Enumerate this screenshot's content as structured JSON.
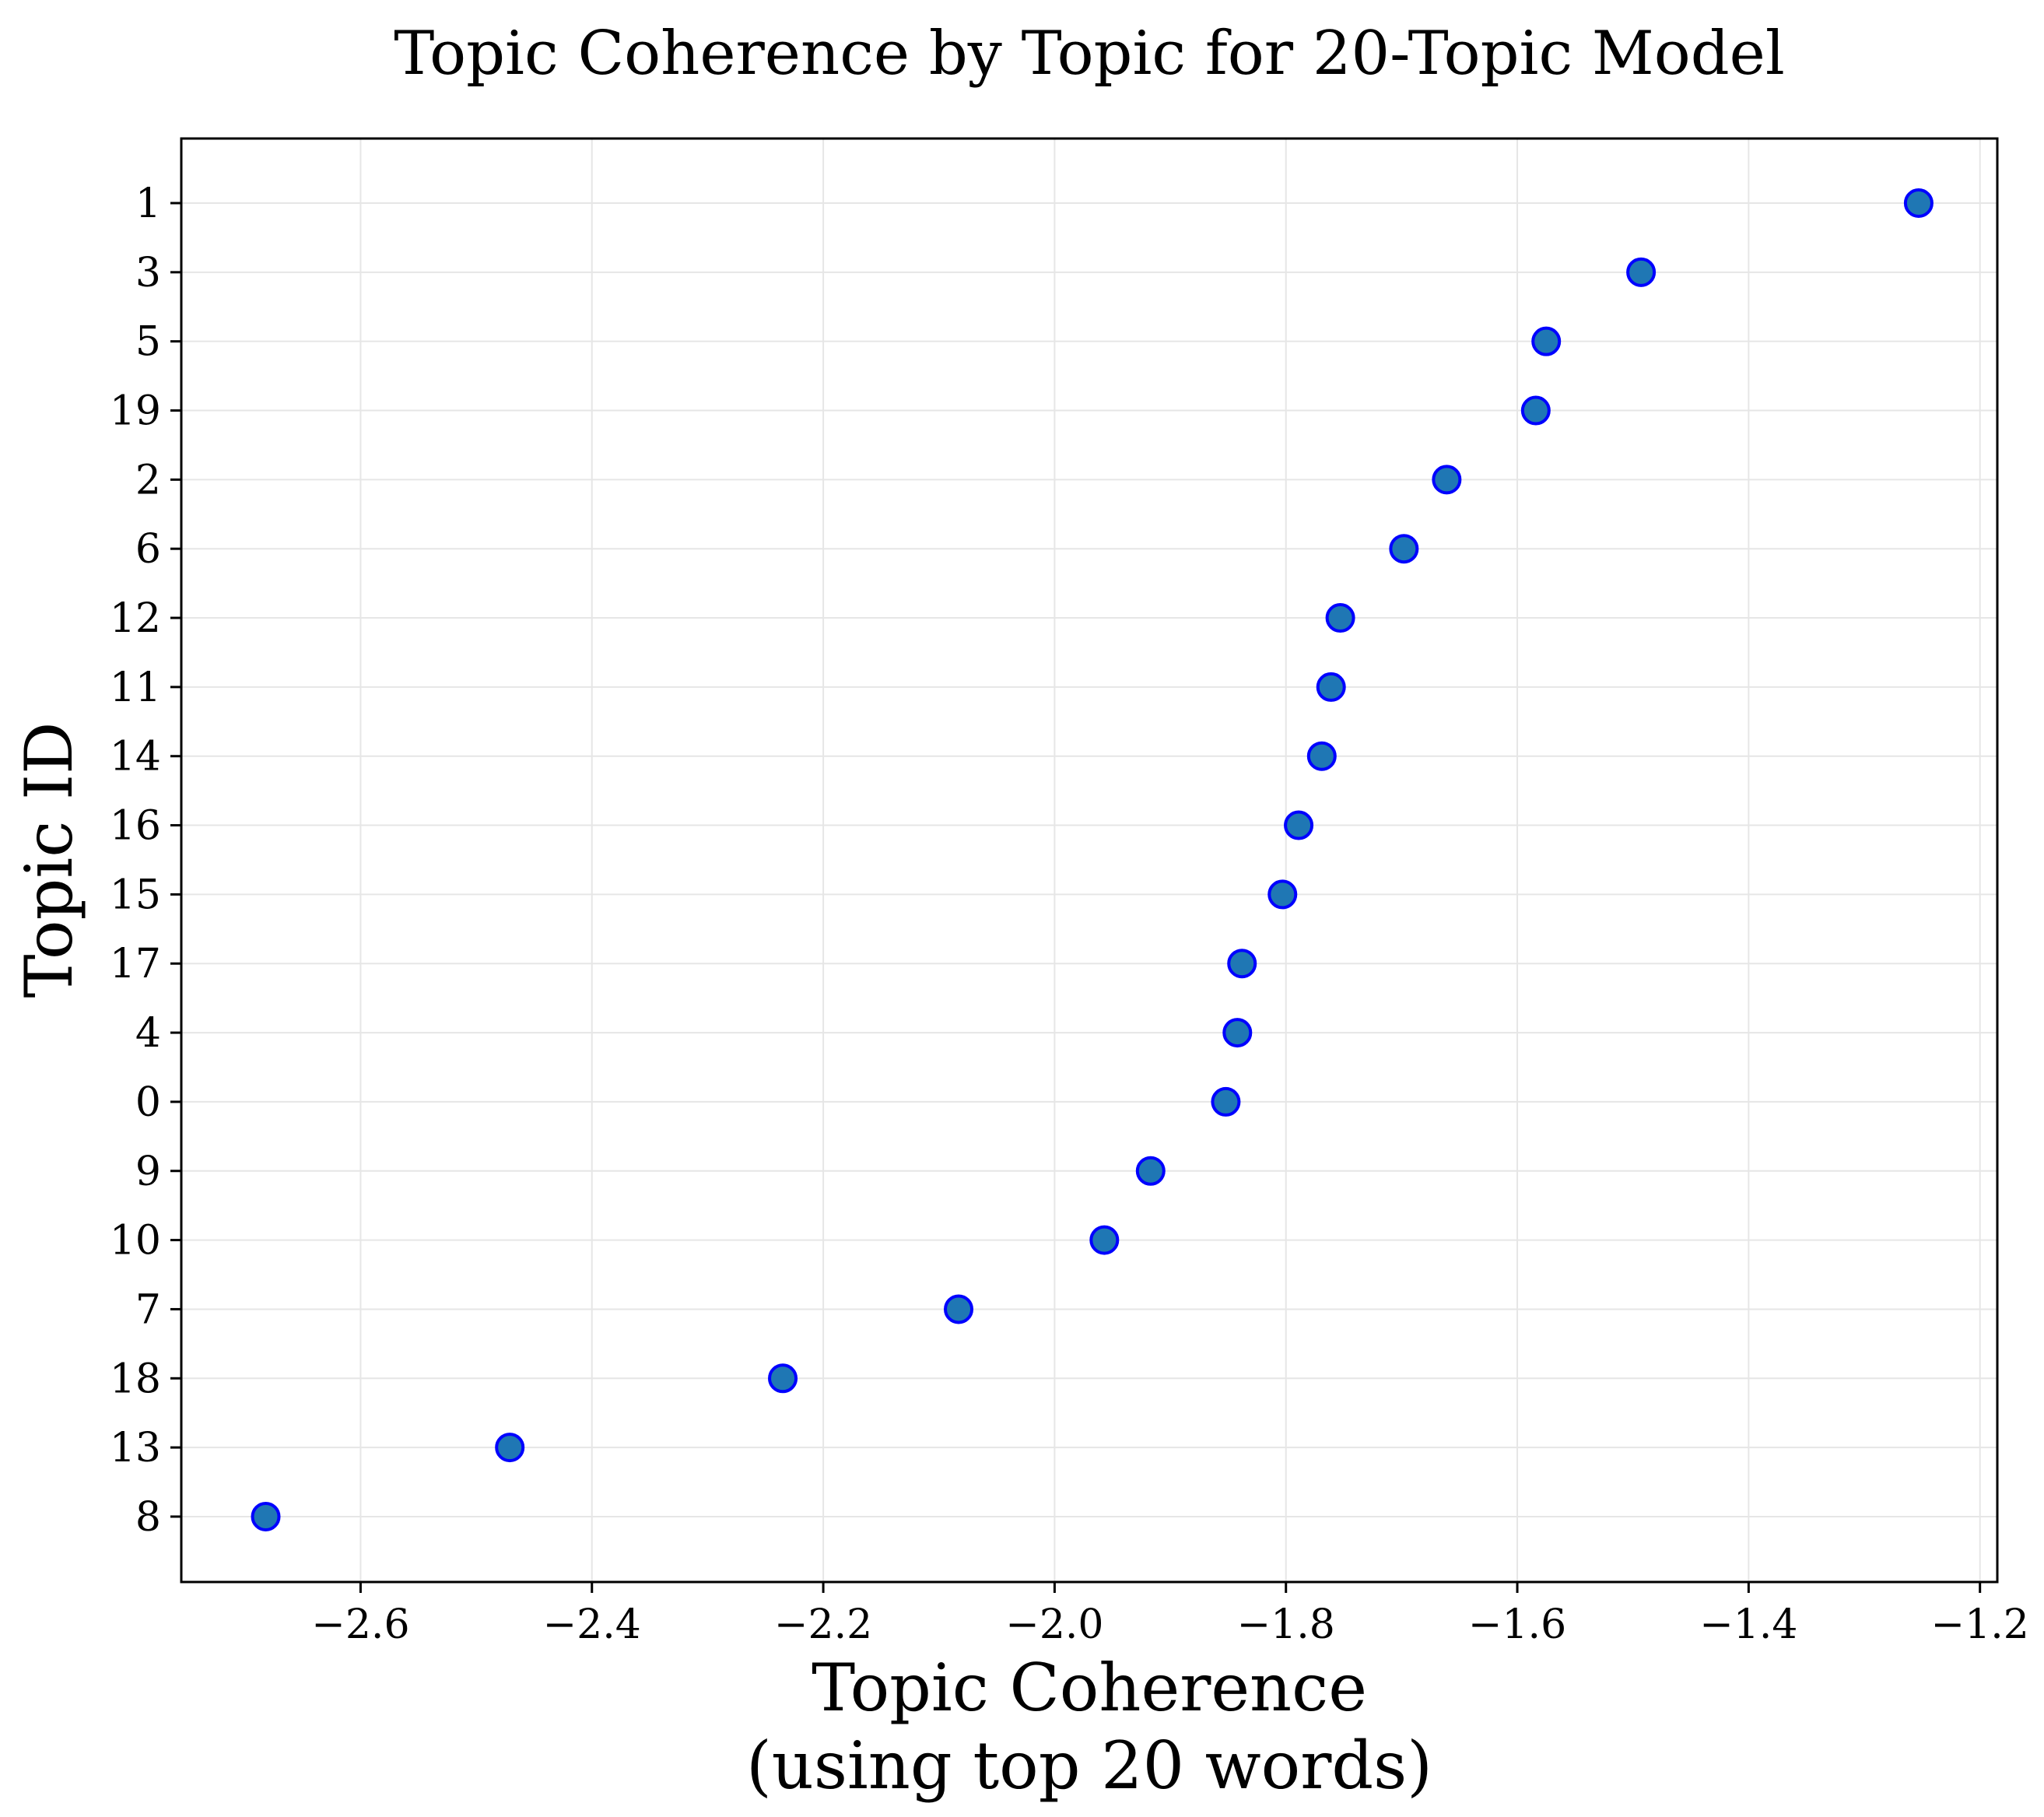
{
  "chart_data": {
    "type": "scatter",
    "title": "Topic Coherence by Topic for 20-Topic Model",
    "xlabel_lines": [
      "Topic Coherence",
      "(using top 20 words)"
    ],
    "ylabel": "Topic ID",
    "xlim": [
      -2.755,
      -1.185
    ],
    "xticks": [
      -2.6,
      -2.4,
      -2.2,
      -2.0,
      -1.8,
      -1.6,
      -1.4,
      -1.2
    ],
    "xtick_labels": [
      "−2.6",
      "−2.4",
      "−2.2",
      "−2.0",
      "−1.8",
      "−1.6",
      "−1.4",
      "−1.2"
    ],
    "grid": true,
    "categories": [
      "1",
      "3",
      "5",
      "19",
      "2",
      "6",
      "12",
      "11",
      "14",
      "16",
      "15",
      "17",
      "4",
      "0",
      "9",
      "10",
      "7",
      "18",
      "13",
      "8"
    ],
    "values": [
      -1.253,
      -1.493,
      -1.575,
      -1.584,
      -1.661,
      -1.698,
      -1.753,
      -1.761,
      -1.769,
      -1.789,
      -1.803,
      -1.838,
      -1.842,
      -1.852,
      -1.917,
      -1.957,
      -2.083,
      -2.235,
      -2.471,
      -2.682
    ],
    "colors": {
      "marker_fill": "#1f77b4",
      "marker_edge": "#0000ff",
      "grid": "#e6e6e6",
      "axis": "#000000"
    }
  }
}
